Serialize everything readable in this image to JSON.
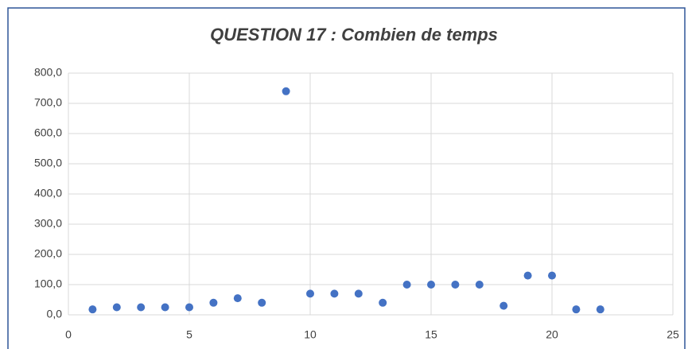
{
  "chart_data": {
    "type": "scatter",
    "title": "QUESTION 17 : Combien  de temps",
    "x": [
      1,
      2,
      3,
      4,
      5,
      6,
      7,
      8,
      9,
      10,
      11,
      12,
      13,
      14,
      15,
      16,
      17,
      18,
      19,
      20,
      21,
      22
    ],
    "values": [
      18,
      25,
      25,
      25,
      25,
      40,
      55,
      40,
      740,
      70,
      70,
      70,
      40,
      100,
      100,
      100,
      100,
      30,
      130,
      130,
      18,
      18
    ],
    "color": "#4472c4",
    "xlim": [
      0,
      25
    ],
    "xticks": [
      0,
      5,
      10,
      15,
      20,
      25
    ],
    "ylim": [
      0,
      800
    ],
    "yticks": [
      {
        "value": 0,
        "label": "0,0"
      },
      {
        "value": 100,
        "label": "100,0"
      },
      {
        "value": 200,
        "label": "200,0"
      },
      {
        "value": 300,
        "label": "300,0"
      },
      {
        "value": 400,
        "label": "400,0"
      },
      {
        "value": 500,
        "label": "500,0"
      },
      {
        "value": 600,
        "label": "600,0"
      },
      {
        "value": 700,
        "label": "700,0"
      },
      {
        "value": 800,
        "label": "800,0"
      }
    ],
    "grid": true
  }
}
